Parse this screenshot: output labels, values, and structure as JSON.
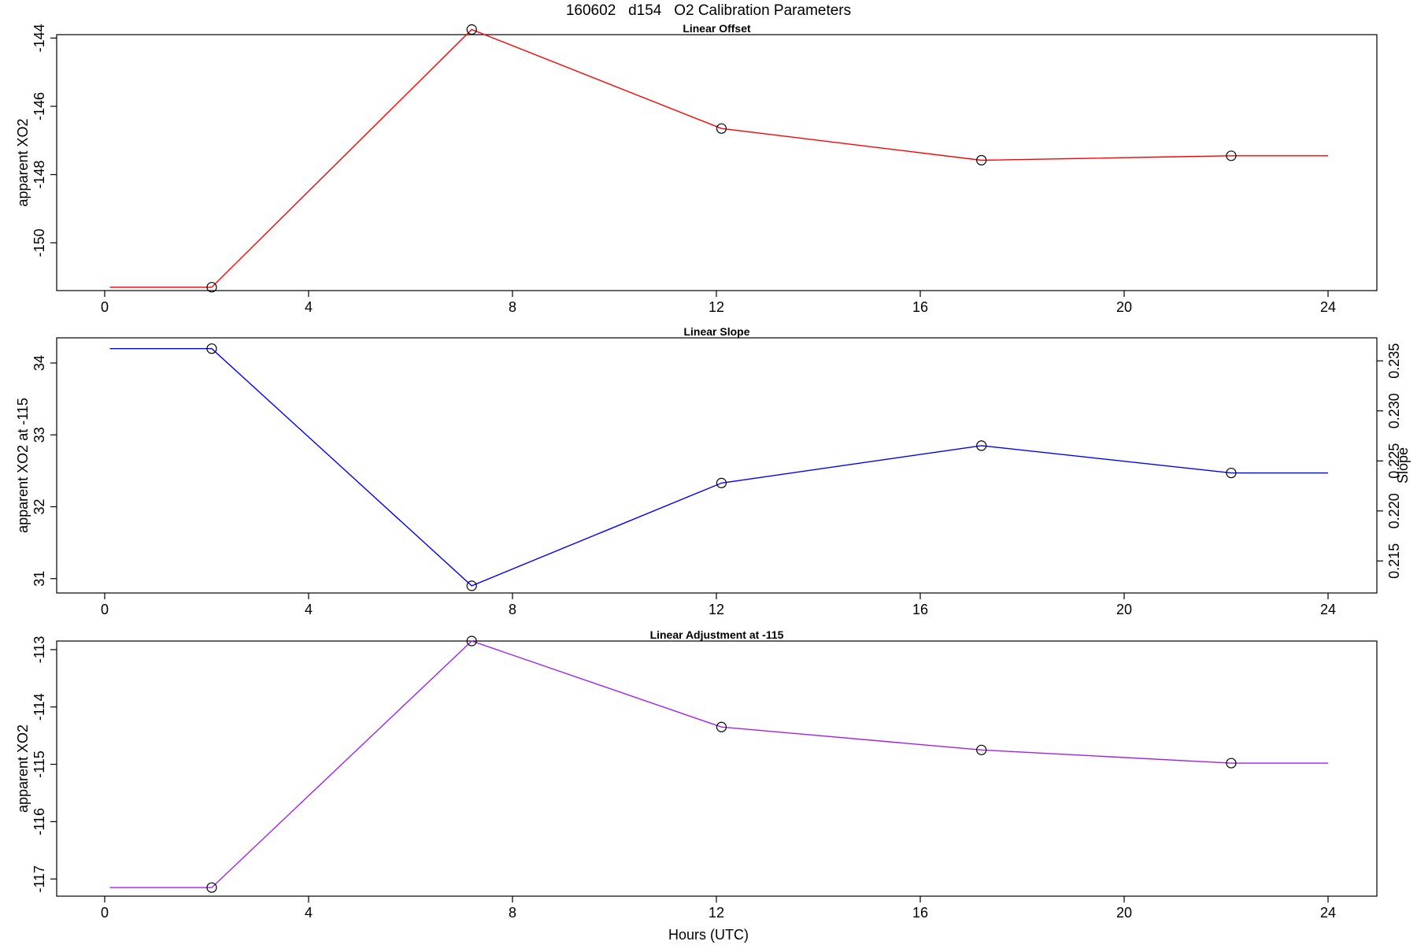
{
  "figure_title": "160602   d154   O2 Calibration Parameters",
  "xlabel": "Hours (UTC)",
  "colors": {
    "offset": "#ff0000",
    "slope": "#0000ff",
    "adjustment": "#a020f0",
    "markers": "#000000"
  },
  "chart_data": [
    {
      "type": "line",
      "title": "Linear Offset",
      "xlabel": "",
      "ylabel": "apparent XO2",
      "xlim": [
        0,
        24
      ],
      "ylim": [
        -151.4,
        -143.9
      ],
      "xticks": [
        0,
        4,
        8,
        12,
        16,
        20,
        24
      ],
      "yticks": [
        -150,
        -148,
        -146,
        -144
      ],
      "series": [
        {
          "values_x": [
            0.1,
            2.1,
            7.2,
            12.1,
            17.2,
            22.1,
            24.0
          ],
          "values_y": [
            -151.3,
            -151.3,
            -143.75,
            -146.65,
            -147.58,
            -147.45,
            -147.45
          ],
          "markers_at": [
            1,
            2,
            3,
            4,
            5
          ]
        }
      ],
      "grid": false
    },
    {
      "type": "line",
      "title": "Linear Slope",
      "xlabel": "",
      "ylabel": "apparent XO2 at -115",
      "ylabel_right": "Slope",
      "xlim": [
        0,
        24
      ],
      "ylim": [
        30.8,
        34.35
      ],
      "xticks": [
        0,
        4,
        8,
        12,
        16,
        20,
        24
      ],
      "yticks": [
        31.0,
        32.0,
        33.0,
        34.0
      ],
      "yticks_right": [
        0.215,
        0.22,
        0.225,
        0.23,
        0.235
      ],
      "yticks_right_labels": [
        "0.215",
        "0.220",
        "0.225",
        "0.230",
        "0.235"
      ],
      "ylim_right": [
        0.2118,
        0.2373
      ],
      "series": [
        {
          "values_x": [
            0.1,
            2.1,
            7.2,
            12.1,
            17.2,
            22.1,
            24.0
          ],
          "values_y": [
            34.2,
            34.2,
            30.9,
            32.33,
            32.85,
            32.47,
            32.47
          ],
          "markers_at": [
            1,
            2,
            3,
            4,
            5
          ]
        }
      ],
      "grid": false
    },
    {
      "type": "line",
      "title": "Linear Adjustment at -115",
      "xlabel": "Hours (UTC)",
      "ylabel": "apparent XO2",
      "xlim": [
        0,
        24
      ],
      "ylim": [
        -117.3,
        -112.85
      ],
      "xticks": [
        0,
        4,
        8,
        12,
        16,
        20,
        24
      ],
      "yticks": [
        -117,
        -116,
        -115,
        -114,
        -113
      ],
      "series": [
        {
          "values_x": [
            0.1,
            2.1,
            7.2,
            12.1,
            17.2,
            22.1,
            24.0
          ],
          "values_y": [
            -117.15,
            -117.15,
            -112.85,
            -114.35,
            -114.75,
            -114.98,
            -114.98
          ],
          "markers_at": [
            1,
            2,
            3,
            4,
            5
          ]
        }
      ],
      "grid": false
    }
  ]
}
